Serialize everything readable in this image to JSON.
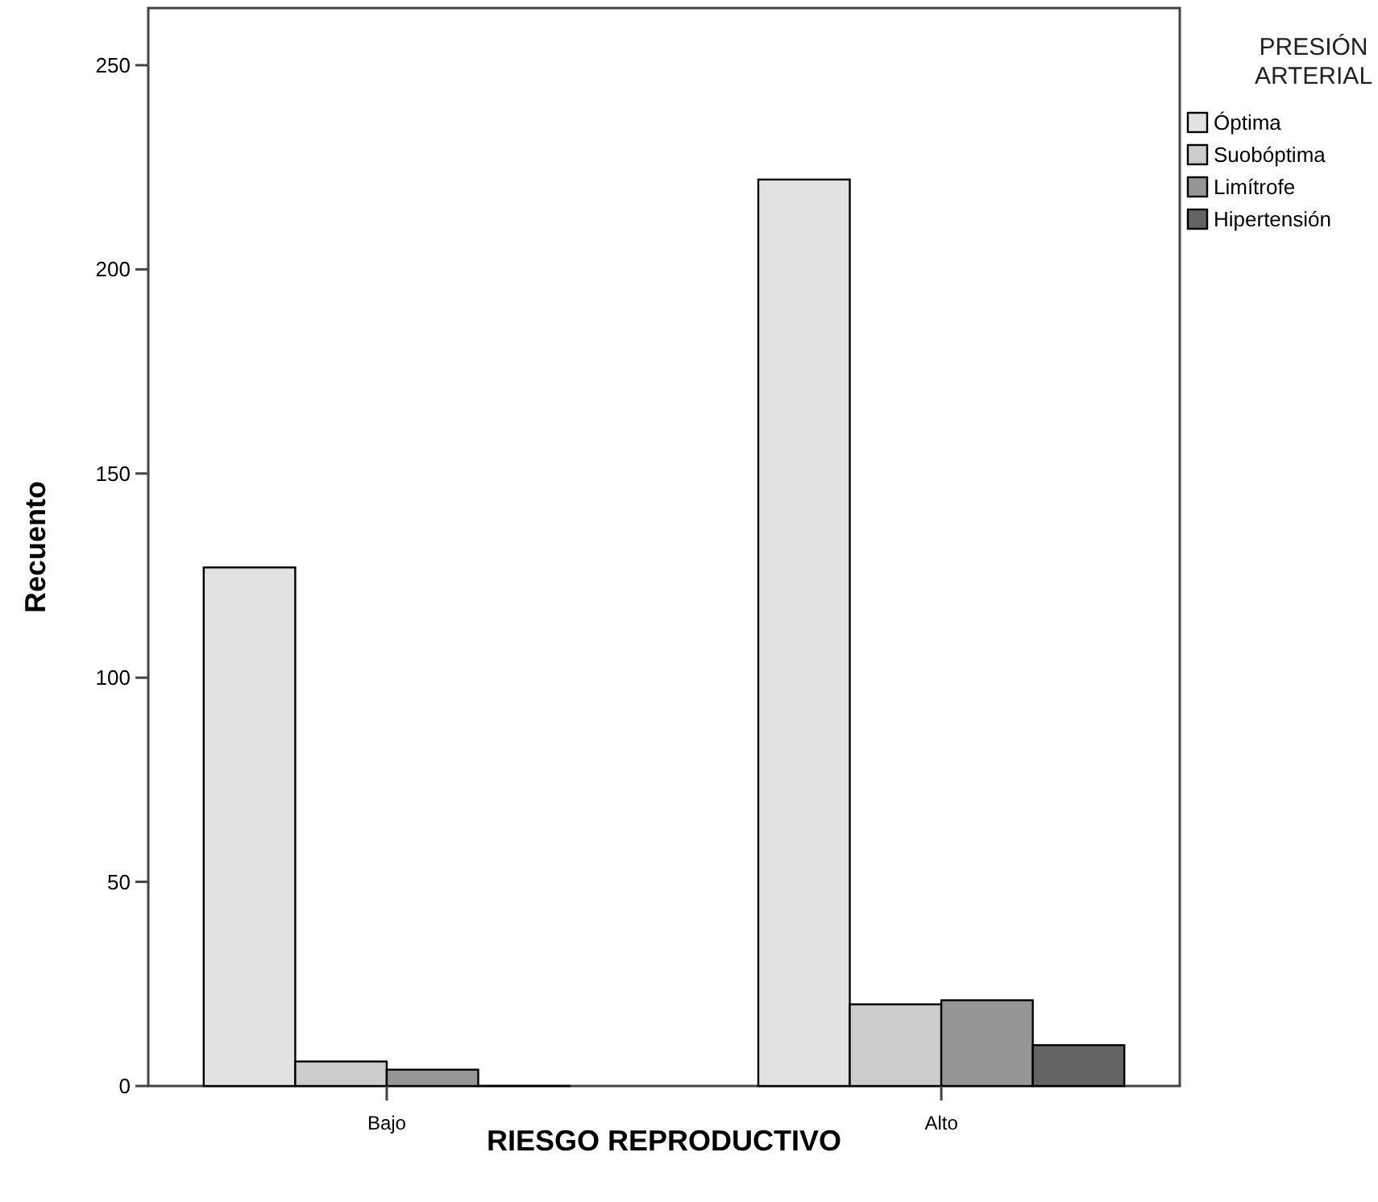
{
  "chart_data": {
    "type": "bar",
    "xlabel": "RIESGO REPRODUCTIVO",
    "ylabel": "Recuento",
    "legend_title": "PRESIÓN ARTERIAL",
    "categories": [
      "Bajo",
      "Alto"
    ],
    "series": [
      {
        "name": "Óptima",
        "color": "#e2e2e2",
        "values": [
          127,
          222
        ]
      },
      {
        "name": "Suobóptima",
        "color": "#cccccc",
        "values": [
          6,
          20
        ]
      },
      {
        "name": "Limítrofe",
        "color": "#969696",
        "values": [
          4,
          21
        ]
      },
      {
        "name": "Hipertensión",
        "color": "#646464",
        "values": [
          0,
          10
        ]
      }
    ],
    "ylim": [
      0,
      264
    ],
    "yticks": [
      0,
      50,
      100,
      150,
      200,
      250
    ],
    "grid": false,
    "legend": "right"
  }
}
